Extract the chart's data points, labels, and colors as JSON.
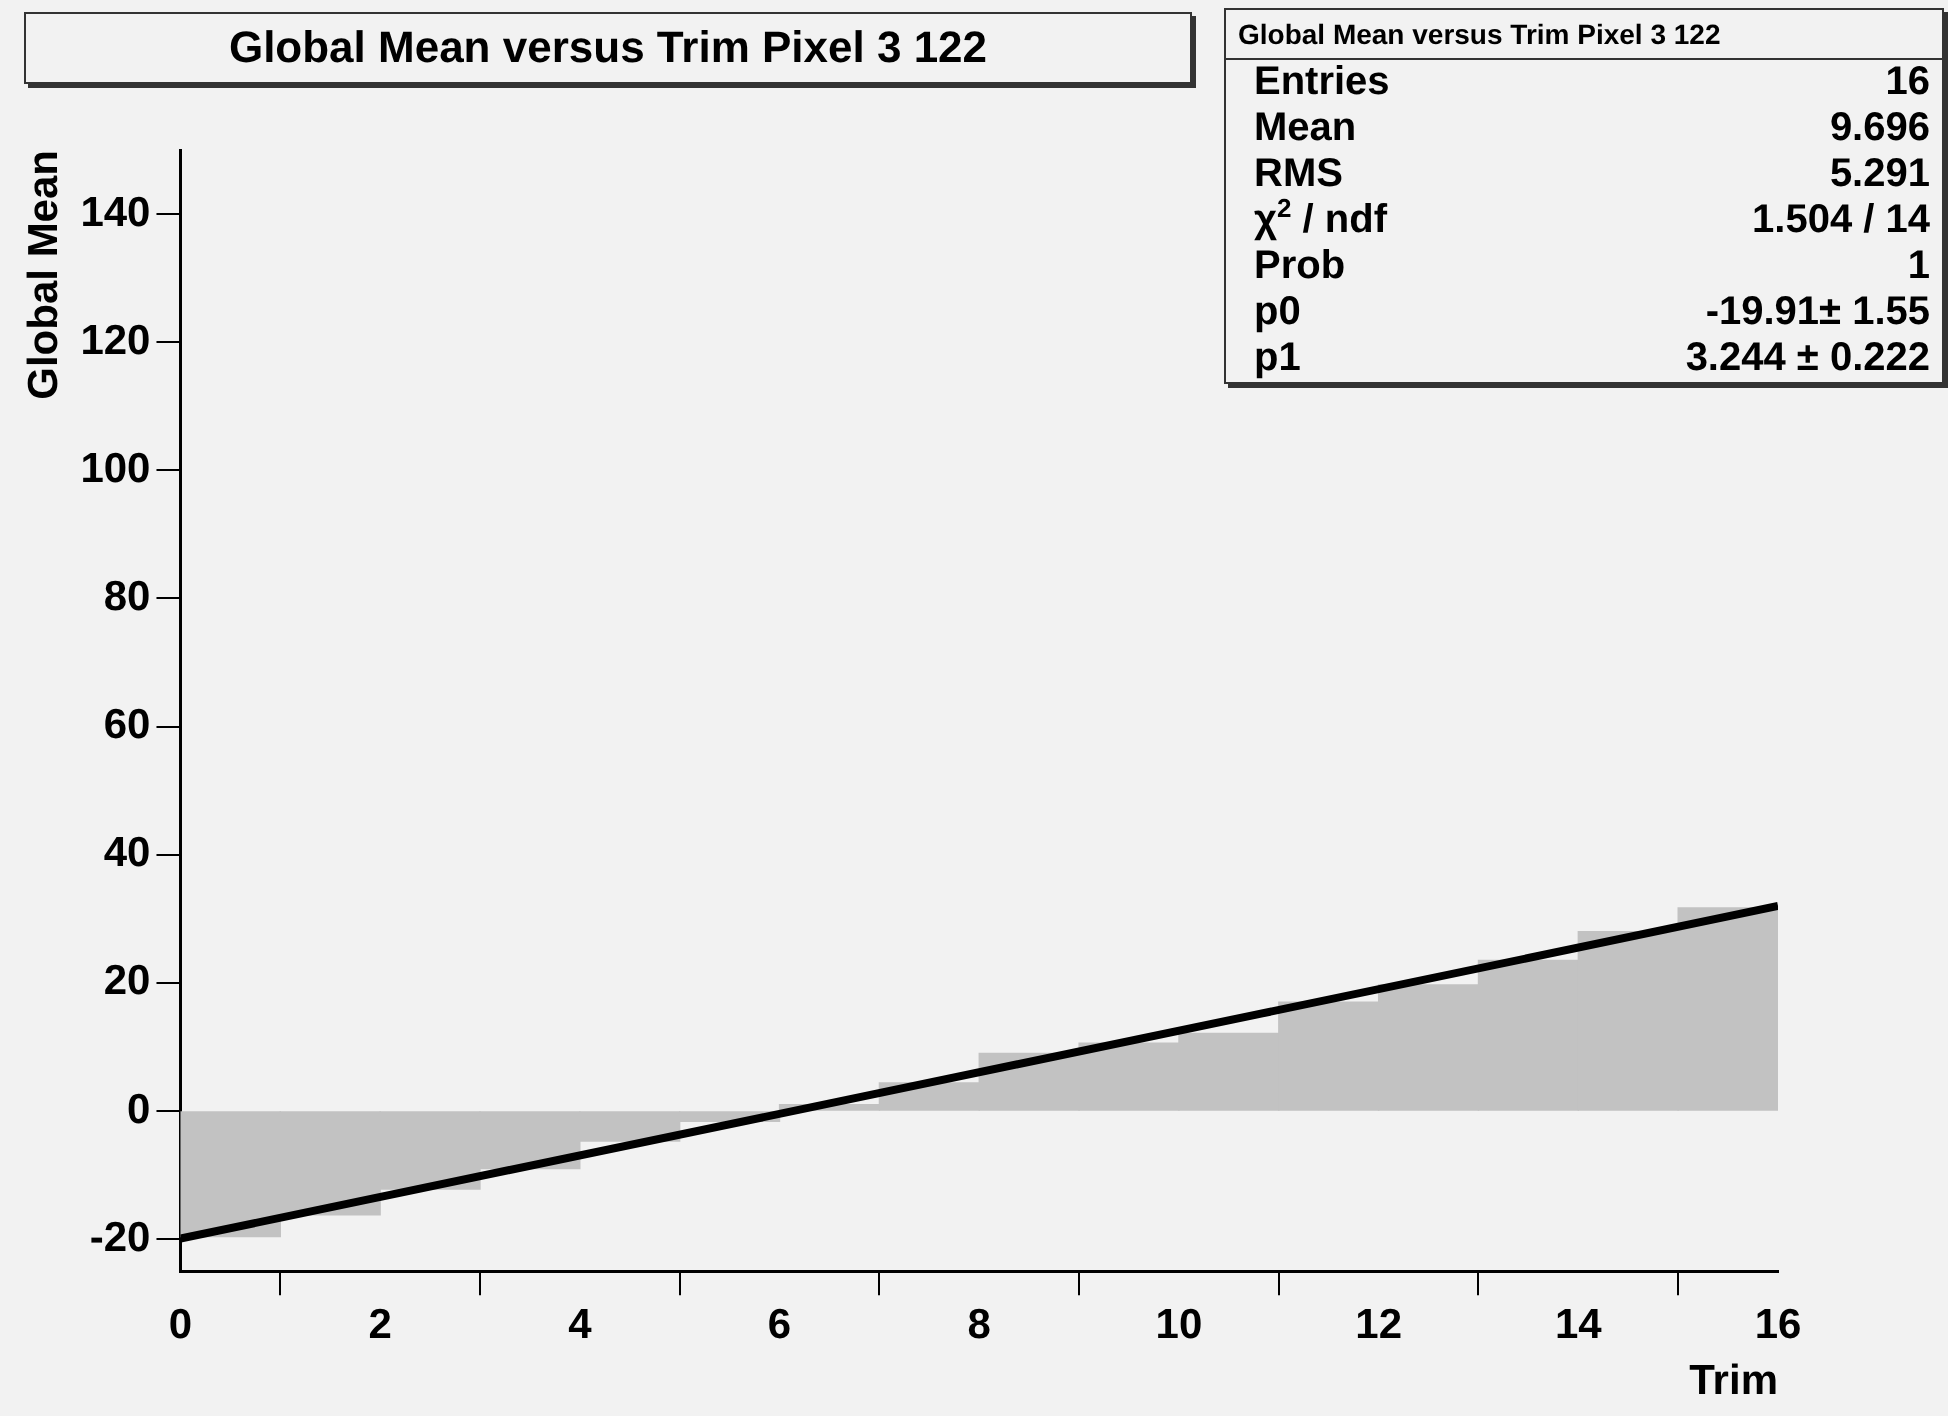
{
  "chart_data": {
    "type": "histogram",
    "title": "Global Mean versus Trim Pixel 3 122",
    "xlabel": "Trim",
    "ylabel": "Global Mean",
    "bins": [
      0,
      1,
      2,
      3,
      4,
      5,
      6,
      7,
      8,
      9,
      10,
      11,
      12,
      13,
      14,
      15,
      16
    ],
    "values": [
      -19.6,
      -16.2,
      -12.2,
      -9.0,
      -4.7,
      -1.6,
      1.0,
      4.4,
      9.0,
      10.6,
      12.1,
      17.0,
      19.7,
      23.5,
      28.0,
      31.7
    ],
    "color": "#c2c2c2",
    "series": [
      {
        "type": "line",
        "x": [
          0,
          16
        ],
        "values": [
          -19.9,
          32.0
        ],
        "color": "#000000"
      }
    ],
    "xlim": [
      0,
      16
    ],
    "xticks": [
      0,
      2,
      4,
      6,
      8,
      10,
      12,
      14,
      16
    ],
    "ylim": [
      -25,
      150
    ],
    "yticks": [
      -20,
      0,
      20,
      40,
      60,
      80,
      100,
      120,
      140
    ],
    "grid": false,
    "legend": false,
    "annotations": [
      "Global Mean versus Trim Pixel 3 122",
      "Entries",
      "16",
      "Mean",
      "9.696",
      "RMS",
      "5.291",
      "χ$^{2}$ / ndf",
      "1.504 / 14",
      "Prob",
      "1",
      "p0",
      "-19.91± 1.55",
      "p1",
      "3.244 ± 0.222"
    ]
  }
}
